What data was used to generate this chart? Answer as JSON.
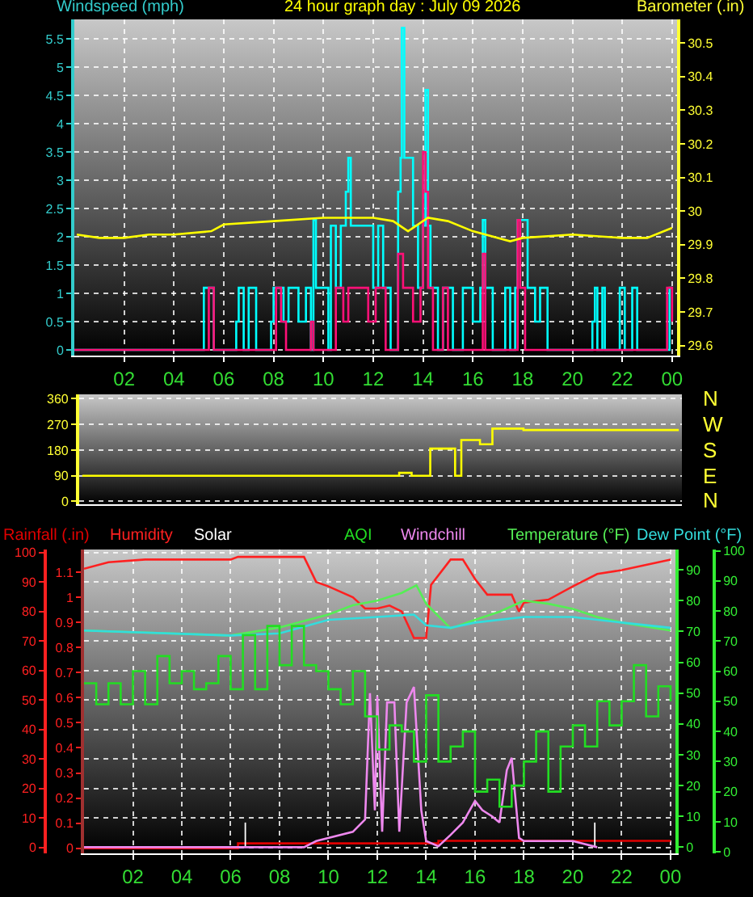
{
  "chart_data": [
    {
      "type": "step",
      "title": "24 hour graph day : July 09 2026",
      "ylabel": "Windspeed (mph)",
      "y2label": "Barometer (.in)",
      "xlim": [
        "2026-07-09T00:00",
        "2026-07-10T00:12"
      ],
      "xticks": [
        {
          "value": "2026-07-09T02:00",
          "label": "02"
        },
        {
          "value": "2026-07-09T04:00",
          "label": "04"
        },
        {
          "value": "2026-07-09T06:00",
          "label": "06"
        },
        {
          "value": "2026-07-09T08:00",
          "label": "08"
        },
        {
          "value": "2026-07-09T10:00",
          "label": "10"
        },
        {
          "value": "2026-07-09T12:00",
          "label": "12"
        },
        {
          "value": "2026-07-09T14:00",
          "label": "14"
        },
        {
          "value": "2026-07-09T16:00",
          "label": "16"
        },
        {
          "value": "2026-07-09T18:00",
          "label": "18"
        },
        {
          "value": "2026-07-09T20:00",
          "label": "20"
        },
        {
          "value": "2026-07-09T22:00",
          "label": "22"
        },
        {
          "value": "2026-07-10T00:00",
          "label": "00"
        }
      ],
      "ylim": [
        -0.1,
        5.85
      ],
      "yticks": [
        0,
        0.5,
        1,
        1.5,
        2,
        2.5,
        3,
        3.5,
        4,
        4.5,
        5,
        5.5
      ],
      "y2lim": [
        29.57,
        30.57
      ],
      "y2ticks": [
        29.6,
        29.7,
        29.8,
        29.9,
        30,
        30.1,
        30.2,
        30.3,
        30.4,
        30.5
      ],
      "grid": true,
      "legend": false,
      "series": [
        {
          "color": "#00ffff",
          "x": [
            "2026-07-09T00:00",
            "2026-07-09T05:12",
            "2026-07-09T05:36",
            "2026-07-09T06:30",
            "2026-07-09T06:36",
            "2026-07-09T06:48",
            "2026-07-09T07:00",
            "2026-07-09T07:18",
            "2026-07-09T07:54",
            "2026-07-09T08:00",
            "2026-07-09T08:24",
            "2026-07-09T08:36",
            "2026-07-09T09:00",
            "2026-07-09T09:18",
            "2026-07-09T09:30",
            "2026-07-09T09:36",
            "2026-07-09T09:42",
            "2026-07-09T10:12",
            "2026-07-09T10:18",
            "2026-07-09T10:30",
            "2026-07-09T10:42",
            "2026-07-09T10:54",
            "2026-07-09T11:00",
            "2026-07-09T11:06",
            "2026-07-09T11:30",
            "2026-07-09T12:00",
            "2026-07-09T12:12",
            "2026-07-09T12:24",
            "2026-07-09T12:42",
            "2026-07-09T13:00",
            "2026-07-09T13:06",
            "2026-07-09T13:09",
            "2026-07-09T13:15",
            "2026-07-09T13:36",
            "2026-07-09T13:48",
            "2026-07-09T14:00",
            "2026-07-09T14:06",
            "2026-07-09T14:12",
            "2026-07-09T14:18",
            "2026-07-09T14:36",
            "2026-07-09T14:48",
            "2026-07-09T15:12",
            "2026-07-09T15:36",
            "2026-07-09T16:00",
            "2026-07-09T16:18",
            "2026-07-09T16:24",
            "2026-07-09T16:30",
            "2026-07-09T16:48",
            "2026-07-09T17:18",
            "2026-07-09T17:30",
            "2026-07-09T17:42",
            "2026-07-09T17:48",
            "2026-07-09T18:12",
            "2026-07-09T18:30",
            "2026-07-09T18:42",
            "2026-07-09T19:00",
            "2026-07-09T20:48",
            "2026-07-09T20:54",
            "2026-07-09T21:00",
            "2026-07-09T21:12",
            "2026-07-09T21:18",
            "2026-07-09T21:54",
            "2026-07-09T22:06",
            "2026-07-09T22:24",
            "2026-07-09T22:36",
            "2026-07-09T23:54",
            "2026-07-10T00:00"
          ],
          "values": [
            0,
            1.1,
            0,
            0.5,
            1.1,
            0,
            1.1,
            0,
            0.5,
            1.1,
            0.5,
            1.1,
            0.5,
            1.1,
            0,
            2.3,
            1.1,
            0,
            2.2,
            1.1,
            2.2,
            2.8,
            3.4,
            2.2,
            2.2,
            1.1,
            2.2,
            1.1,
            0,
            2.8,
            3.4,
            5.7,
            3.4,
            2.2,
            1.1,
            2.2,
            4.6,
            2.2,
            1.1,
            0,
            1.1,
            0,
            1.1,
            0.5,
            1.1,
            2.3,
            1.1,
            0,
            1.1,
            0,
            1.1,
            2.3,
            1.1,
            0.5,
            1.1,
            0,
            0.5,
            1.1,
            0,
            1.1,
            0,
            1.1,
            0,
            1.1,
            0,
            1.1,
            1.1
          ]
        },
        {
          "color": "#ff1077",
          "x": [
            "2026-07-09T00:00",
            "2026-07-09T05:24",
            "2026-07-09T05:36",
            "2026-07-09T08:06",
            "2026-07-09T08:18",
            "2026-07-09T08:30",
            "2026-07-09T09:30",
            "2026-07-09T09:36",
            "2026-07-09T10:30",
            "2026-07-09T10:48",
            "2026-07-09T11:00",
            "2026-07-09T11:30",
            "2026-07-09T11:48",
            "2026-07-09T12:06",
            "2026-07-09T12:30",
            "2026-07-09T13:00",
            "2026-07-09T13:12",
            "2026-07-09T13:36",
            "2026-07-09T13:54",
            "2026-07-09T14:00",
            "2026-07-09T14:06",
            "2026-07-09T14:12",
            "2026-07-09T14:24",
            "2026-07-09T14:48",
            "2026-07-09T15:00",
            "2026-07-09T16:24",
            "2026-07-09T16:30",
            "2026-07-09T17:48",
            "2026-07-09T17:54",
            "2026-07-09T18:06",
            "2026-07-09T23:48",
            "2026-07-10T00:00"
          ],
          "values": [
            0,
            1.1,
            0,
            1.1,
            0.5,
            0,
            0.5,
            0,
            1.1,
            0.5,
            1.1,
            1.1,
            0.5,
            1.1,
            0,
            1.7,
            1.1,
            0.5,
            1.1,
            3.5,
            2.8,
            1.1,
            0,
            1.1,
            0,
            1.7,
            0,
            2.3,
            1.1,
            0,
            1.1,
            0.5
          ]
        },
        {
          "type": "line",
          "axis": "y2",
          "color": "#ffff00",
          "x": [
            "2026-07-09T00:06",
            "2026-07-09T01:00",
            "2026-07-09T02:00",
            "2026-07-09T03:00",
            "2026-07-09T04:00",
            "2026-07-09T05:30",
            "2026-07-09T06:00",
            "2026-07-09T08:00",
            "2026-07-09T10:00",
            "2026-07-09T12:00",
            "2026-07-09T12:48",
            "2026-07-09T13:24",
            "2026-07-09T14:12",
            "2026-07-09T15:00",
            "2026-07-09T16:00",
            "2026-07-09T17:30",
            "2026-07-09T18:00",
            "2026-07-09T20:00",
            "2026-07-09T22:00",
            "2026-07-09T23:00",
            "2026-07-10T00:00"
          ],
          "values": [
            29.93,
            29.92,
            29.92,
            29.93,
            29.93,
            29.94,
            29.96,
            29.97,
            29.98,
            29.98,
            29.97,
            29.94,
            29.98,
            29.97,
            29.94,
            29.91,
            29.92,
            29.93,
            29.92,
            29.92,
            29.95
          ]
        }
      ]
    },
    {
      "type": "step",
      "categories": [
        null,
        null,
        null,
        null,
        null,
        null,
        null,
        null,
        null,
        null,
        null,
        null,
        null,
        null,
        null,
        null,
        null,
        null,
        null,
        null,
        null,
        null,
        null,
        null,
        null,
        null,
        null,
        null,
        null,
        null,
        null,
        null,
        null,
        null,
        null,
        null,
        null,
        null,
        null,
        null,
        null,
        null,
        null,
        null,
        null,
        null,
        null,
        null,
        null,
        null,
        null,
        null,
        null,
        null,
        null,
        null,
        null,
        null,
        null,
        null,
        null,
        null,
        null,
        null,
        null,
        null,
        null,
        null,
        null,
        null,
        null,
        null,
        null,
        null,
        null,
        null,
        null,
        null,
        null,
        null,
        null,
        null,
        null,
        null,
        null,
        null,
        null,
        null,
        null,
        null,
        null,
        null,
        null,
        null,
        null,
        null,
        null
      ],
      "ylim": [
        -10,
        375
      ],
      "yticks": [
        0,
        90,
        180,
        270,
        360
      ],
      "annotations": [
        "N",
        "W",
        "S",
        "E",
        "N"
      ],
      "grid": "y",
      "tick_labels": "y",
      "legend": false,
      "series": [
        {
          "color": "#ffff00",
          "values": [
            90,
            90,
            90,
            90,
            90,
            90,
            90,
            90,
            90,
            90,
            90,
            90,
            90,
            90,
            90,
            90,
            90,
            90,
            90,
            90,
            90,
            90,
            90,
            90,
            90,
            90,
            90,
            90,
            90,
            90,
            90,
            90,
            90,
            90,
            90,
            90,
            90,
            90,
            90,
            90,
            90,
            90,
            90,
            90,
            90,
            90,
            90,
            90,
            90,
            90,
            90,
            100,
            100,
            90,
            90,
            90,
            185,
            185,
            185,
            185,
            90,
            215,
            215,
            215,
            200,
            200,
            255,
            255,
            255,
            255,
            255,
            250,
            250,
            250,
            250,
            250,
            250,
            250,
            250,
            250,
            250,
            250,
            250,
            250,
            250,
            250,
            250,
            250,
            250,
            250,
            250,
            250,
            250,
            250,
            250,
            250,
            250
          ]
        }
      ]
    },
    {
      "type": "line",
      "xlim": [
        "2026-07-09T00:00",
        "2026-07-10T00:12"
      ],
      "xticks": [
        {
          "value": "2026-07-09T02:00",
          "label": "02"
        },
        {
          "value": "2026-07-09T04:00",
          "label": "04"
        },
        {
          "value": "2026-07-09T06:00",
          "label": "06"
        },
        {
          "value": "2026-07-09T08:00",
          "label": "08"
        },
        {
          "value": "2026-07-09T10:00",
          "label": "10"
        },
        {
          "value": "2026-07-09T12:00",
          "label": "12"
        },
        {
          "value": "2026-07-09T14:00",
          "label": "14"
        },
        {
          "value": "2026-07-09T16:00",
          "label": "16"
        },
        {
          "value": "2026-07-09T18:00",
          "label": "18"
        },
        {
          "value": "2026-07-09T20:00",
          "label": "20"
        },
        {
          "value": "2026-07-09T22:00",
          "label": "22"
        },
        {
          "value": "2026-07-10T00:00",
          "label": "00"
        }
      ],
      "ylim": [
        -2,
        101
      ],
      "yticks": [
        0,
        10,
        20,
        30,
        40,
        50,
        60,
        70,
        80,
        90,
        100
      ],
      "y2lim": [
        -0.02,
        1.19
      ],
      "y2ticks": [
        0,
        0.1,
        0.2,
        0.3,
        0.4,
        0.5,
        0.6,
        0.7,
        0.8,
        0.9,
        1,
        1.1
      ],
      "grid": true,
      "legend": false,
      "series": [
        {
          "name": "Rainfall (.in)",
          "type": "step",
          "axis": "y2",
          "color": "#e00000",
          "x": [
            "2026-07-09T00:00",
            "2026-07-09T06:18",
            "2026-07-09T14:30",
            "2026-07-10T00:00"
          ],
          "values": [
            0,
            0.02,
            0.03,
            0.03
          ]
        },
        {
          "name": "Humidity",
          "color": "#ff2020",
          "x": [
            "2026-07-09T00:00",
            "2026-07-09T01:00",
            "2026-07-09T02:30",
            "2026-07-09T06:00",
            "2026-07-09T06:18",
            "2026-07-09T09:00",
            "2026-07-09T09:30",
            "2026-07-09T10:00",
            "2026-07-09T11:00",
            "2026-07-09T11:30",
            "2026-07-09T12:00",
            "2026-07-09T12:30",
            "2026-07-09T13:00",
            "2026-07-09T13:30",
            "2026-07-09T14:00",
            "2026-07-09T14:12",
            "2026-07-09T15:00",
            "2026-07-09T15:30",
            "2026-07-09T16:00",
            "2026-07-09T16:30",
            "2026-07-09T17:30",
            "2026-07-09T17:48",
            "2026-07-09T18:00",
            "2026-07-09T19:00",
            "2026-07-09T20:00",
            "2026-07-09T21:00",
            "2026-07-09T22:00",
            "2026-07-09T23:00",
            "2026-07-10T00:00"
          ],
          "values": [
            94.5,
            96.7,
            97.6,
            97.6,
            98.5,
            98.5,
            90,
            88.5,
            84.8,
            81,
            81,
            82,
            80,
            71,
            71,
            89,
            97.6,
            97.6,
            91,
            85.7,
            85.7,
            80,
            83,
            84,
            88.5,
            92.7,
            94,
            95.8,
            97.6
          ]
        }
      ]
    },
    {
      "type": "line",
      "xlim": [
        "2026-07-09T00:00",
        "2026-07-10T00:12"
      ],
      "ylim": [
        -2,
        96.6
      ],
      "yticks": [
        0,
        10,
        20,
        30,
        40,
        50,
        60,
        70,
        80,
        90
      ],
      "y2lim": [
        -0.5,
        100.4
      ],
      "y2ticks": [
        0,
        10,
        20,
        30,
        40,
        50,
        60,
        70,
        80,
        90,
        100
      ],
      "tick_labels": "y",
      "legend": false,
      "series": [
        {
          "name": "Solar",
          "type": "bar",
          "color": "#ffffff",
          "x": [
            "2026-07-09T06:36",
            "2026-07-09T20:54"
          ],
          "values": [
            8,
            8
          ]
        },
        {
          "name": "AQI",
          "type": "step",
          "axis": "y2",
          "color": "#22dd22",
          "x": [
            "2026-07-09T00:00",
            "2026-07-09T00:30",
            "2026-07-09T01:00",
            "2026-07-09T01:30",
            "2026-07-09T02:00",
            "2026-07-09T02:30",
            "2026-07-09T03:00",
            "2026-07-09T03:30",
            "2026-07-09T04:00",
            "2026-07-09T04:30",
            "2026-07-09T05:00",
            "2026-07-09T05:30",
            "2026-07-09T06:00",
            "2026-07-09T06:30",
            "2026-07-09T07:00",
            "2026-07-09T07:30",
            "2026-07-09T08:00",
            "2026-07-09T08:30",
            "2026-07-09T09:00",
            "2026-07-09T09:30",
            "2026-07-09T10:00",
            "2026-07-09T10:30",
            "2026-07-09T11:00",
            "2026-07-09T11:30",
            "2026-07-09T12:00",
            "2026-07-09T12:30",
            "2026-07-09T13:00",
            "2026-07-09T13:30",
            "2026-07-09T14:00",
            "2026-07-09T14:30",
            "2026-07-09T15:00",
            "2026-07-09T15:30",
            "2026-07-09T16:00",
            "2026-07-09T16:30",
            "2026-07-09T17:00",
            "2026-07-09T17:30",
            "2026-07-09T18:00",
            "2026-07-09T18:30",
            "2026-07-09T19:00",
            "2026-07-09T19:30",
            "2026-07-09T20:00",
            "2026-07-09T20:30",
            "2026-07-09T21:00",
            "2026-07-09T21:30",
            "2026-07-09T22:00",
            "2026-07-09T22:30",
            "2026-07-09T23:00",
            "2026-07-09T23:30",
            "2026-07-10T00:00"
          ],
          "values": [
            56,
            49,
            56,
            49,
            60,
            49,
            65,
            56,
            60,
            54,
            56,
            65,
            54,
            72,
            54,
            75,
            62,
            75,
            62,
            60,
            54,
            49,
            60,
            45,
            34,
            42,
            40,
            30,
            52,
            30,
            35,
            40,
            20,
            24,
            15,
            22,
            30,
            40,
            20,
            35,
            42,
            35,
            50,
            42,
            50,
            62,
            45,
            55,
            50
          ]
        },
        {
          "name": "Windchill",
          "color": "#ee88ee",
          "x": [
            "2026-07-09T00:00",
            "2026-07-09T09:00",
            "2026-07-09T09:30",
            "2026-07-09T11:00",
            "2026-07-09T11:30",
            "2026-07-09T11:42",
            "2026-07-09T11:54",
            "2026-07-09T12:00",
            "2026-07-09T12:12",
            "2026-07-09T12:24",
            "2026-07-09T12:42",
            "2026-07-09T12:54",
            "2026-07-09T13:12",
            "2026-07-09T13:30",
            "2026-07-09T13:48",
            "2026-07-09T14:00",
            "2026-07-09T14:30",
            "2026-07-09T15:00",
            "2026-07-09T15:30",
            "2026-07-09T16:00",
            "2026-07-09T16:18",
            "2026-07-09T16:42",
            "2026-07-09T17:00",
            "2026-07-09T17:18",
            "2026-07-09T17:30",
            "2026-07-09T17:48",
            "2026-07-09T18:00",
            "2026-07-09T20:00",
            "2026-07-09T21:00"
          ],
          "values": [
            0,
            0,
            2,
            5,
            9,
            50,
            12,
            49,
            5,
            47,
            47,
            5,
            47,
            52,
            12,
            2,
            0.3,
            4,
            8,
            15,
            12,
            10,
            8,
            25,
            29,
            3,
            2,
            2,
            0
          ]
        },
        {
          "name": "Temperature (°F)",
          "color": "#55ee55",
          "x": [
            "2026-07-09T00:00",
            "2026-07-09T06:00",
            "2026-07-09T08:00",
            "2026-07-09T10:00",
            "2026-07-09T11:00",
            "2026-07-09T12:00",
            "2026-07-09T13:00",
            "2026-07-09T13:36",
            "2026-07-09T14:00",
            "2026-07-09T15:00",
            "2026-07-09T16:00",
            "2026-07-09T17:00",
            "2026-07-09T18:00",
            "2026-07-09T19:00",
            "2026-07-09T20:00",
            "2026-07-09T21:00",
            "2026-07-09T22:00",
            "2026-07-10T00:00"
          ],
          "values": [
            70.3,
            68.7,
            71.3,
            75.5,
            78.5,
            80,
            82.5,
            85,
            79,
            71,
            73.8,
            76.4,
            80,
            79,
            77.3,
            74.7,
            72.9,
            70.3
          ]
        },
        {
          "name": "Dew Point (°F)",
          "color": "#33dddd",
          "x": [
            "2026-07-09T00:00",
            "2026-07-09T06:00",
            "2026-07-09T08:00",
            "2026-07-09T10:00",
            "2026-07-09T12:00",
            "2026-07-09T13:30",
            "2026-07-09T14:00",
            "2026-07-09T15:00",
            "2026-07-09T16:00",
            "2026-07-09T18:00",
            "2026-07-09T20:00",
            "2026-07-09T22:00",
            "2026-07-10T00:00"
          ],
          "values": [
            70.3,
            68.7,
            69.4,
            73.8,
            74.7,
            75.5,
            72,
            71.2,
            72.9,
            74.7,
            74.7,
            72.9,
            71.2
          ]
        }
      ]
    }
  ]
}
